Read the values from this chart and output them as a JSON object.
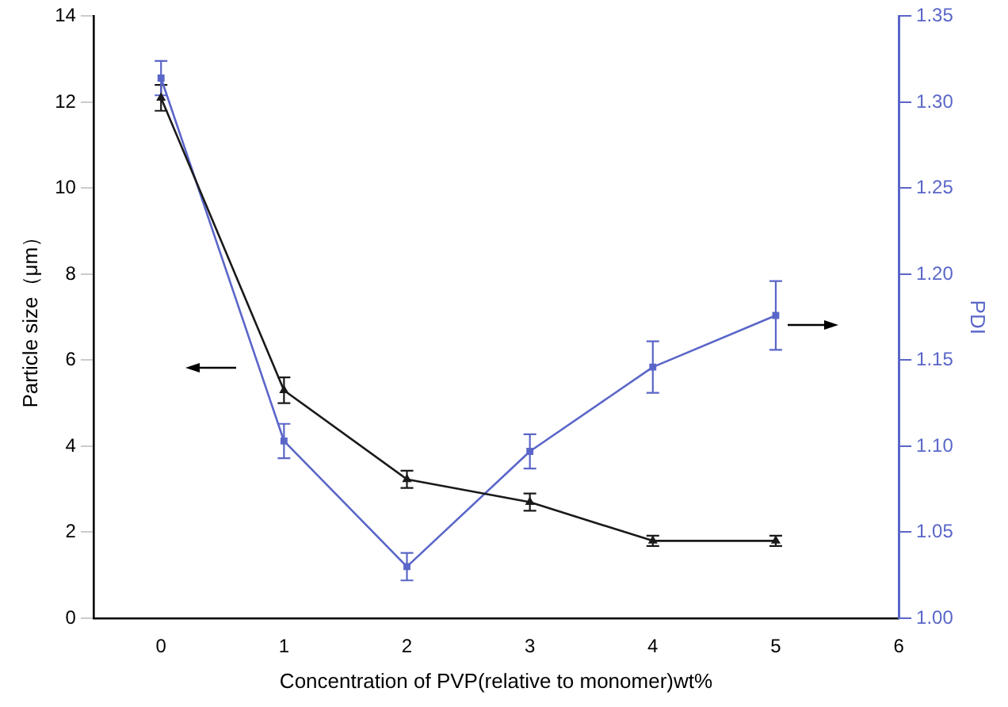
{
  "chart_data": {
    "type": "line",
    "xlabel": "Concentration of PVP(relative to monomer)wt%",
    "ylabel": "Particle size（μm）",
    "y2label": "PDI",
    "x": [
      0,
      1,
      2,
      3,
      4,
      5
    ],
    "series": [
      {
        "color": "#1a1a1a",
        "marker": "triangle",
        "values": [
          12.1,
          5.3,
          3.23,
          2.7,
          1.8,
          1.8
        ],
        "errors": [
          0.3,
          0.3,
          0.2,
          0.2,
          0.12,
          0.12
        ]
      },
      {
        "color": "#5a66c8",
        "marker": "square",
        "axis": "y2",
        "values": [
          1.314,
          1.103,
          1.03,
          1.097,
          1.146,
          1.176
        ],
        "errors": [
          0.01,
          0.01,
          0.008,
          0.01,
          0.015,
          0.02
        ]
      }
    ],
    "xlim": [
      -0.55,
      6
    ],
    "xticks": [
      0,
      1,
      2,
      3,
      4,
      5,
      6
    ],
    "ylim": [
      0,
      14
    ],
    "yticks": [
      0,
      2,
      4,
      6,
      8,
      10,
      12,
      14
    ],
    "y2lim": [
      1.0,
      1.35
    ],
    "y2ticks": [
      {
        "value": 1.0,
        "label": "1.00"
      },
      {
        "value": 1.05,
        "label": "1.05"
      },
      {
        "value": 1.1,
        "label": "1.10"
      },
      {
        "value": 1.15,
        "label": "1.15"
      },
      {
        "value": 1.2,
        "label": "1.20"
      },
      {
        "value": 1.25,
        "label": "1.25"
      },
      {
        "value": 1.3,
        "label": "1.30"
      },
      {
        "value": 1.35,
        "label": "1.35"
      }
    ],
    "grid": false,
    "legend": false,
    "line_style": "solid"
  }
}
